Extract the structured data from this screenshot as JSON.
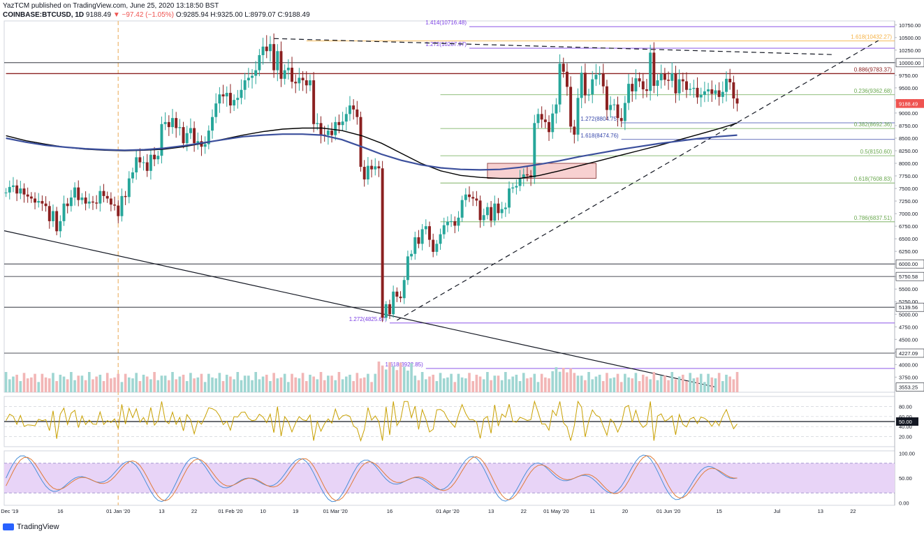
{
  "header": {
    "published": "YazTCM published on TradingView.com, June 25, 2020 13:18:50 BST",
    "symbol": "COINBASE:BTCUSD, 1D",
    "last": "9188.49",
    "change": "▼ −97.42 (−1.05%)",
    "ohlc": "O:9285.94 H:9325.00 L:8979.07 C:9188.49"
  },
  "footer": {
    "brand": "TradingView"
  },
  "chart_data": {
    "type": "candlestick",
    "colors": {
      "up": "#26a69a",
      "down": "#8b2020",
      "fib": "#6aa84f",
      "ext": "#7b3fe4",
      "orange": "#f5b041",
      "sma100": "#000000",
      "sma200": "#3b4f9c",
      "rsi": "#c8a000"
    },
    "price_axis": {
      "range": [
        3450,
        10830
      ],
      "ticks": [
        3750,
        4000,
        4250,
        4500,
        4750,
        5000,
        5250,
        5500,
        5750,
        6000,
        6250,
        6500,
        6750,
        7000,
        7250,
        7500,
        7750,
        8000,
        8250,
        8500,
        8750,
        9000,
        9250,
        9500,
        9750,
        10000,
        10250,
        10500,
        10750
      ]
    },
    "date_axis": {
      "labels": [
        {
          "t": "01 Dec '19",
          "i": 0
        },
        {
          "t": "16",
          "i": 15
        },
        {
          "t": "01 Jan '20",
          "i": 31
        },
        {
          "t": "13",
          "i": 43
        },
        {
          "t": "22",
          "i": 52
        },
        {
          "t": "01 Feb '20",
          "i": 62
        },
        {
          "t": "10",
          "i": 71
        },
        {
          "t": "19",
          "i": 80
        },
        {
          "t": "01 Mar '20",
          "i": 91
        },
        {
          "t": "16",
          "i": 106
        },
        {
          "t": "01 Apr '20",
          "i": 122
        },
        {
          "t": "13",
          "i": 134
        },
        {
          "t": "22",
          "i": 143
        },
        {
          "t": "01 May '20",
          "i": 152
        },
        {
          "t": "11",
          "i": 162
        },
        {
          "t": "20",
          "i": 171
        },
        {
          "t": "01 Jun '20",
          "i": 183
        },
        {
          "t": "15",
          "i": 197
        },
        {
          "t": "Jul",
          "i": 213
        },
        {
          "t": "13",
          "i": 225
        },
        {
          "t": "22",
          "i": 234
        }
      ],
      "total_days": 246
    },
    "closes": [
      7420,
      7530,
      7560,
      7400,
      7500,
      7380,
      7340,
      7300,
      7220,
      7250,
      7200,
      7150,
      6850,
      7050,
      6650,
      6850,
      7200,
      7150,
      7320,
      7520,
      7270,
      7320,
      7200,
      7240,
      7220,
      7200,
      7450,
      7350,
      7300,
      7180,
      7160,
      6950,
      7350,
      7330,
      7700,
      7820,
      8120,
      8020,
      8020,
      7850,
      8170,
      8080,
      8150,
      8780,
      8820,
      8720,
      8900,
      8700,
      8720,
      8400,
      8600,
      8700,
      8400,
      8440,
      8330,
      8380,
      8650,
      8920,
      9190,
      9370,
      9330,
      9400,
      9150,
      9260,
      9300,
      9460,
      9650,
      9700,
      9740,
      9850,
      10150,
      10320,
      10230,
      10370,
      9850,
      10230,
      9680,
      9850,
      9900,
      9620,
      9590,
      9700,
      9650,
      9550,
      9650,
      8780,
      8800,
      8570,
      8560,
      8650,
      8560,
      8820,
      8760,
      8830,
      8980,
      9150,
      9070,
      8920,
      7930,
      7680,
      7950,
      7880,
      7940,
      7900,
      4930,
      5200,
      5000,
      5450,
      5350,
      5320,
      5680,
      6150,
      6200,
      6530,
      6400,
      6690,
      6750,
      6480,
      6240,
      6400,
      6590,
      6770,
      6840,
      6850,
      6760,
      6920,
      7270,
      7380,
      7330,
      7300,
      7260,
      6870,
      6970,
      7130,
      6860,
      7200,
      7010,
      7090,
      7120,
      7500,
      7520,
      7550,
      7700,
      7780,
      7760,
      7720,
      8800,
      8980,
      8870,
      8820,
      8620,
      8990,
      9170,
      9980,
      9820,
      9520,
      8730,
      8570,
      9300,
      9800,
      9350,
      9370,
      9670,
      9760,
      9780,
      9530,
      9060,
      9160,
      9170,
      8900,
      8840,
      9200,
      9580,
      9430,
      9690,
      9630,
      9470,
      9440,
      10200,
      9540,
      9650,
      9780,
      9660,
      9640,
      9790,
      9390,
      9670,
      9630,
      9460,
      9480,
      9500,
      9310,
      9360,
      9430,
      9470,
      9380,
      9450,
      9320,
      9420,
      9680,
      9610,
      9290,
      9188.49
    ],
    "sma100_closes": [
      7950,
      8050,
      8150,
      8300,
      8400,
      8550,
      8650,
      8800,
      8850,
      8950,
      9000,
      9100,
      9150,
      9300,
      9400,
      9250,
      9150,
      9100,
      8900,
      8600,
      8300,
      8100,
      7950,
      7800,
      7700,
      7550,
      7450,
      7350,
      7200,
      7100,
      7000,
      7000,
      7050,
      7100,
      7100,
      7050,
      7000,
      7000,
      6950,
      6900,
      6850,
      6850,
      6750,
      6650,
      6600,
      6550,
      6550,
      6500,
      6450,
      6400,
      6300,
      6300,
      6250,
      6200,
      6200,
      6150,
      6100,
      6000,
      5900,
      5850,
      5750,
      5700
    ],
    "sma200_closes": [
      8600,
      8500,
      8450,
      8400,
      8350,
      8300,
      8280,
      8250,
      8250,
      8250,
      8250,
      8250,
      8280,
      8300,
      8300,
      8350,
      8300,
      8300,
      8250,
      8200,
      8150,
      8100,
      8050,
      8050,
      8000,
      7950,
      7950,
      7900,
      7850,
      7800,
      7800,
      7750,
      7750,
      7800,
      7850,
      7900,
      7950,
      8000,
      8050,
      8100,
      8100,
      8100,
      8100,
      8100,
      8100,
      8150,
      8150,
      8150,
      8200,
      8200,
      8200,
      8200,
      8250,
      8250,
      8300,
      8300,
      8350,
      8350,
      8350,
      8350,
      8400,
      8400
    ],
    "volume": {
      "range": [
        0,
        70
      ]
    },
    "rsi": {
      "range": [
        0,
        100
      ],
      "ticks": [
        20,
        40,
        60,
        80
      ],
      "marker": 50,
      "label": "50.00"
    },
    "stoch_rsi": {
      "range": [
        -5,
        105
      ],
      "ticks": [
        0,
        50,
        100
      ],
      "band": [
        20,
        80
      ]
    },
    "levels": [
      {
        "label": "1.618(10432.27)",
        "price": 10432.27,
        "kind": "orange",
        "from": 83,
        "to": 246,
        "label_side": "right"
      },
      {
        "label": "1.414(10716.48)",
        "price": 10716.48,
        "kind": "ext",
        "from": 128,
        "to": 246,
        "label_side": "left_at_from"
      },
      {
        "label": "1.272(10287.97)",
        "price": 10287.97,
        "kind": "ext",
        "from": 128,
        "to": 246,
        "label_side": "left_at_from"
      },
      {
        "label": "0.886(9783.37)",
        "price": 9783.37,
        "kind": "red",
        "from": 0,
        "to": 246,
        "label_side": "right"
      },
      {
        "label": "0.236(9362.68)",
        "price": 9362.68,
        "kind": "fib",
        "from": 120,
        "to": 246,
        "label_side": "right"
      },
      {
        "label": "1.272(8804.75)",
        "price": 8804.75,
        "kind": "blue",
        "from": 170,
        "to": 246,
        "label_side": "left_at_from"
      },
      {
        "label": "0.382(8692.36)",
        "price": 8692.36,
        "kind": "fib",
        "from": 120,
        "to": 246,
        "label_side": "right"
      },
      {
        "label": "1.618(8474.76)",
        "price": 8474.76,
        "kind": "blue",
        "from": 170,
        "to": 246,
        "label_side": "left_at_from"
      },
      {
        "label": "0.5(8150.60)",
        "price": 8150.6,
        "kind": "fib",
        "from": 120,
        "to": 246,
        "label_side": "right"
      },
      {
        "label": "0.618(7608.83)",
        "price": 7608.83,
        "kind": "fib",
        "from": 120,
        "to": 246,
        "label_side": "right"
      },
      {
        "label": "0.786(6837.51)",
        "price": 6837.51,
        "kind": "fib",
        "from": 120,
        "to": 246,
        "label_side": "right"
      },
      {
        "label": "1.272(4825.67)",
        "price": 4825.67,
        "kind": "ext",
        "from": 106,
        "to": 246,
        "label_side": "left_at_from"
      },
      {
        "label": "1.618(3922.85)",
        "price": 3922.85,
        "kind": "ext",
        "from": 116,
        "to": 246,
        "label_side": "left_at_from"
      }
    ],
    "hlines": [
      10000,
      6000,
      5750.58,
      5139.56,
      4227.09
    ],
    "price_tags": [
      {
        "text": "9188.49",
        "price": 9188.49,
        "bg": "#ef5350",
        "fg": "#ffffff"
      },
      {
        "text": "10000.00",
        "price": 10000,
        "bg": "#ffffff",
        "fg": "#131722",
        "box": true
      },
      {
        "text": "6000.00",
        "price": 6000,
        "bg": "#ffffff",
        "fg": "#131722",
        "box": true
      },
      {
        "text": "5750.58",
        "price": 5750.58,
        "bg": "#ffffff",
        "fg": "#131722",
        "box": true
      },
      {
        "text": "5139.56",
        "price": 5139.56,
        "bg": "#ffffff",
        "fg": "#131722",
        "box": true
      },
      {
        "text": "4227.09",
        "price": 4227.09,
        "bg": "#ffffff",
        "fg": "#131722",
        "box": true
      },
      {
        "text": "3553.25",
        "price": 3553.25,
        "bg": "#ffffff",
        "fg": "#131722",
        "box": true
      }
    ],
    "resistance_trend": {
      "p1": {
        "i": 74,
        "price": 10480
      },
      "p2": {
        "i": 229,
        "price": 10160
      }
    },
    "support_trend": {
      "p1": {
        "i": 108,
        "price": 4880
      },
      "p2": {
        "i": 241,
        "price": 10440
      }
    },
    "long_trend": {
      "p1": {
        "i": 0,
        "price": 6660
      },
      "p2": {
        "i": 196,
        "price": 3553
      }
    },
    "zone": {
      "i1": 133,
      "i2": 163,
      "p1": 7700,
      "p2": 8000
    },
    "vline_index": 31
  }
}
